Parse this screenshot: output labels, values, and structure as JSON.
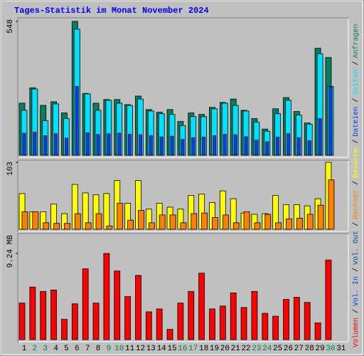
{
  "chart_data": {
    "type": "bar",
    "title": "Tages-Statistik im Monat November 2024",
    "title_color": "#0000ff",
    "categories": [
      "1",
      "2",
      "3",
      "4",
      "5",
      "6",
      "7",
      "8",
      "9",
      "10",
      "11",
      "12",
      "13",
      "14",
      "15",
      "16",
      "17",
      "18",
      "19",
      "20",
      "21",
      "22",
      "23",
      "24",
      "25",
      "26",
      "27",
      "28",
      "29",
      "30",
      "31"
    ],
    "category_colors": [
      "#000000",
      "#008040",
      "#008040",
      "#000000",
      "#000000",
      "#000000",
      "#000000",
      "#000000",
      "#008040",
      "#008040",
      "#000000",
      "#000000",
      "#000000",
      "#000000",
      "#000000",
      "#008040",
      "#008040",
      "#000000",
      "#000000",
      "#000000",
      "#000000",
      "#000000",
      "#008040",
      "#008040",
      "#000000",
      "#000000",
      "#000000",
      "#000000",
      "#000000",
      "#008040",
      "#000000"
    ],
    "legend_separator": "/",
    "panels": [
      {
        "ylim": [
          0,
          548
        ],
        "yticks": [
          548
        ],
        "series": [
          {
            "name": "Anfragen",
            "color": "#008060",
            "values": [
              213,
              276,
              204,
              219,
              173,
              548,
              253,
              213,
              228,
              228,
              207,
              242,
              187,
              176,
              187,
              138,
              173,
              167,
              196,
              216,
              230,
              184,
              150,
              107,
              190,
              236,
              179,
              132,
              438,
              400,
              null
            ]
          },
          {
            "name": "Seiten",
            "color": "#00e0ff",
            "values": [
              184,
              271,
              141,
              210,
              150,
              516,
              251,
              184,
              225,
              213,
              204,
              230,
              181,
              170,
              167,
              121,
              158,
              158,
              190,
              213,
              204,
              181,
              135,
              98,
              170,
              225,
              164,
              127,
              415,
              282,
              null
            ]
          },
          {
            "name": "Dateien",
            "color": "#0040ff",
            "values": [
              90,
              95,
              80,
              88,
              70,
              282,
              92,
              85,
              88,
              90,
              86,
              84,
              80,
              75,
              78,
              65,
              72,
              74,
              80,
              86,
              84,
              76,
              62,
              55,
              74,
              88,
              72,
              60,
              150,
              280,
              null
            ]
          }
        ]
      },
      {
        "ylim": [
          0,
          103
        ],
        "yticks": [
          103
        ],
        "series": [
          {
            "name": "Besuche",
            "color": "#ffff00",
            "values": [
              55,
              27,
              27,
              39,
              24,
              69,
              56,
              53,
              55,
              75,
              40,
              75,
              31,
              40,
              34,
              31,
              52,
              54,
              41,
              59,
              47,
              25,
              23,
              24,
              52,
              38,
              38,
              36,
              47,
              103,
              null
            ]
          },
          {
            "name": "Rechner",
            "color": "#ff8000",
            "values": [
              27,
              27,
              10,
              9,
              9,
              24,
              10,
              24,
              5,
              40,
              14,
              29,
              10,
              22,
              22,
              10,
              24,
              25,
              18,
              22,
              10,
              27,
              10,
              23,
              10,
              16,
              17,
              23,
              37,
              76,
              null
            ]
          }
        ]
      },
      {
        "ylim": [
          0,
          9.24
        ],
        "yticks": [
          {
            "value": 9.24,
            "label": "9.24 MB"
          }
        ],
        "series": [
          {
            "name": "Volumen",
            "color": "#ff0000",
            "values": [
              3.92,
              5.64,
              5.17,
              5.32,
              2.19,
              3.84,
              7.6,
              3.92,
              9.24,
              7.36,
              4.62,
              6.89,
              2.98,
              3.29,
              1.1,
              3.92,
              5.17,
              7.13,
              3.29,
              3.6,
              5.01,
              3.45,
              5.17,
              2.82,
              2.51,
              4.31,
              4.54,
              3.99,
              1.8,
              8.54,
              null
            ]
          },
          {
            "name": "Vol. In",
            "color": "#0040ff"
          },
          {
            "name": "Vol. Out",
            "color": "#00509f"
          }
        ]
      }
    ]
  }
}
